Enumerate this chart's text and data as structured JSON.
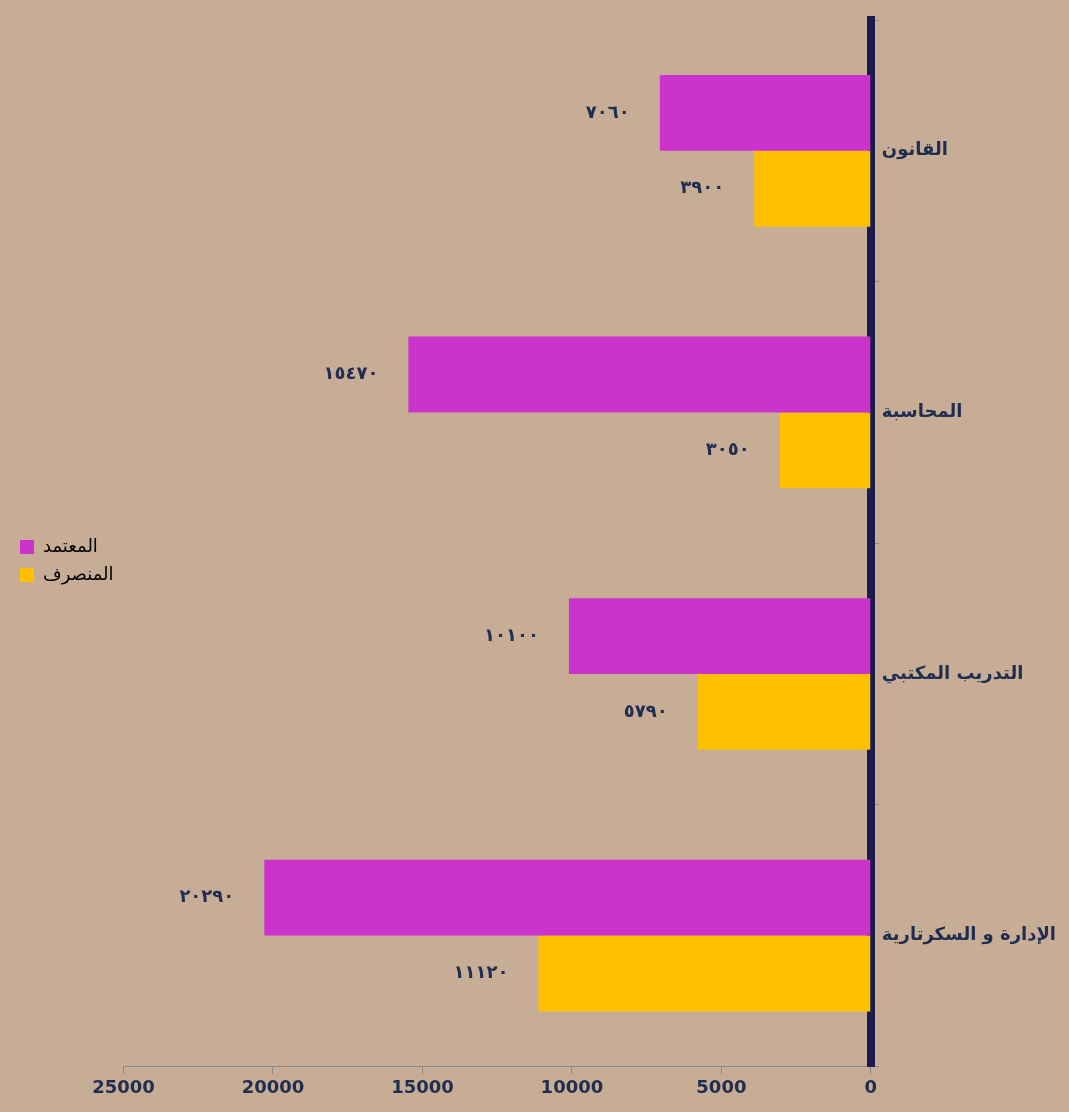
{
  "chart_data": {
    "type": "bar",
    "orientation": "horizontal",
    "categories": [
      "القانون",
      "المحاسبة",
      "التدريب المكتبي",
      "الإدارة و السكرتارية"
    ],
    "series": [
      {
        "name": "المعتمد",
        "color": "#cc33cc",
        "values": [
          7060,
          15470,
          10100,
          20290
        ],
        "value_labels": [
          "٧٠٦٠",
          "١٥٤٧٠",
          "١٠١٠٠",
          "٢٠٢٩٠"
        ]
      },
      {
        "name": "المنصرف",
        "color": "#ffc000",
        "values": [
          3900,
          3050,
          5790,
          11120
        ],
        "value_labels": [
          "٣٩٠٠",
          "٣٠٥٠",
          "٥٧٩٠",
          "١١١٢٠"
        ]
      }
    ],
    "xlim": [
      25000,
      0
    ],
    "xticks": [
      0,
      5000,
      10000,
      15000,
      20000,
      25000
    ],
    "legend": "left"
  }
}
